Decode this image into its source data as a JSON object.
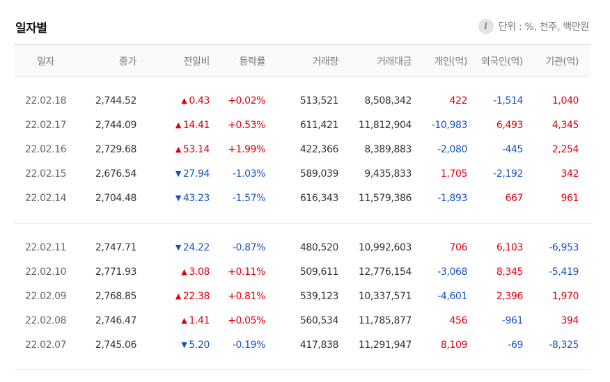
{
  "header": {
    "title": "일자별",
    "unit_label": "단위 : %, 천주, 백만원",
    "info_icon": "info-icon"
  },
  "columns": [
    "일자",
    "종가",
    "전일비",
    "등락률",
    "거래량",
    "거래대금",
    "개인(억)",
    "외국인(억)",
    "기관(억)"
  ],
  "colors": {
    "up": "#e0000c",
    "down": "#1552c5"
  },
  "groups": [
    {
      "rows": [
        {
          "date": "22.02.18",
          "close": "2,744.52",
          "dir": "up",
          "change": "0.43",
          "rate": "+0.02%",
          "volume": "513,521",
          "amount": "8,508,342",
          "individual": "422",
          "foreign": "-1,514",
          "institution": "1,040"
        },
        {
          "date": "22.02.17",
          "close": "2,744.09",
          "dir": "up",
          "change": "14.41",
          "rate": "+0.53%",
          "volume": "611,421",
          "amount": "11,812,904",
          "individual": "-10,983",
          "foreign": "6,493",
          "institution": "4,345"
        },
        {
          "date": "22.02.16",
          "close": "2,729.68",
          "dir": "up",
          "change": "53.14",
          "rate": "+1.99%",
          "volume": "422,366",
          "amount": "8,389,883",
          "individual": "-2,080",
          "foreign": "-445",
          "institution": "2,254"
        },
        {
          "date": "22.02.15",
          "close": "2,676.54",
          "dir": "down",
          "change": "27.94",
          "rate": "-1.03%",
          "volume": "589,039",
          "amount": "9,435,833",
          "individual": "1,705",
          "foreign": "-2,192",
          "institution": "342"
        },
        {
          "date": "22.02.14",
          "close": "2,704.48",
          "dir": "down",
          "change": "43.23",
          "rate": "-1.57%",
          "volume": "616,343",
          "amount": "11,579,386",
          "individual": "-1,893",
          "foreign": "667",
          "institution": "961"
        }
      ]
    },
    {
      "rows": [
        {
          "date": "22.02.11",
          "close": "2,747.71",
          "dir": "down",
          "change": "24.22",
          "rate": "-0.87%",
          "volume": "480,520",
          "amount": "10,992,603",
          "individual": "706",
          "foreign": "6,103",
          "institution": "-6,953"
        },
        {
          "date": "22.02.10",
          "close": "2,771.93",
          "dir": "up",
          "change": "3.08",
          "rate": "+0.11%",
          "volume": "509,611",
          "amount": "12,776,154",
          "individual": "-3,068",
          "foreign": "8,345",
          "institution": "-5,419"
        },
        {
          "date": "22.02.09",
          "close": "2,768.85",
          "dir": "up",
          "change": "22.38",
          "rate": "+0.81%",
          "volume": "539,123",
          "amount": "10,337,571",
          "individual": "-4,601",
          "foreign": "2,396",
          "institution": "1,970"
        },
        {
          "date": "22.02.08",
          "close": "2,746.47",
          "dir": "up",
          "change": "1.41",
          "rate": "+0.05%",
          "volume": "560,534",
          "amount": "11,785,877",
          "individual": "456",
          "foreign": "-961",
          "institution": "394"
        },
        {
          "date": "22.02.07",
          "close": "2,745.06",
          "dir": "down",
          "change": "5.20",
          "rate": "-0.19%",
          "volume": "417,838",
          "amount": "11,291,947",
          "individual": "8,109",
          "foreign": "-69",
          "institution": "-8,325"
        }
      ]
    }
  ]
}
